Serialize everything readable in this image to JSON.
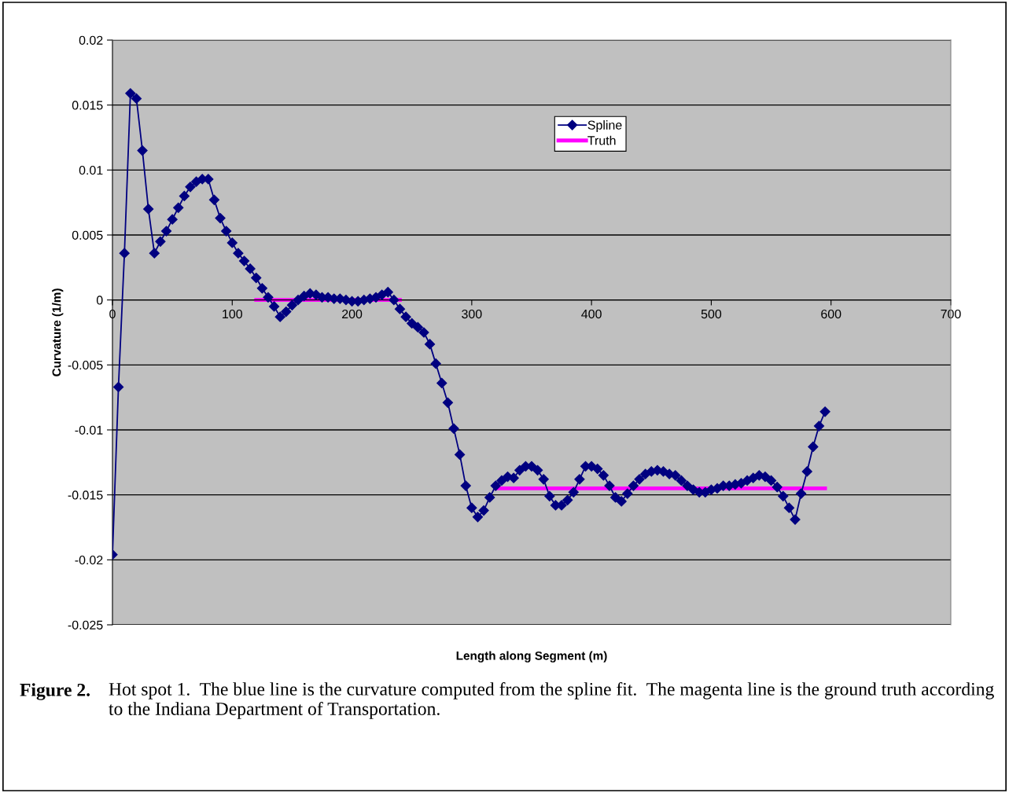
{
  "chart_data": {
    "type": "line",
    "xlabel": "Length along Segment (m)",
    "ylabel": "Curvature (1/m)",
    "xlim": [
      0,
      700
    ],
    "xticks": [
      0,
      100,
      200,
      300,
      400,
      500,
      600,
      700
    ],
    "ylim": [
      -0.025,
      0.02
    ],
    "yticks": [
      -0.025,
      -0.02,
      -0.015,
      -0.01,
      -0.005,
      0,
      0.005,
      0.01,
      0.015,
      0.02
    ],
    "grid": "y",
    "legend": "top right",
    "series": [
      {
        "name": "Spline",
        "color": "#000080",
        "marker": "diamond",
        "line_style": "solid",
        "x": [
          0,
          5,
          10,
          15,
          20,
          25,
          30,
          35,
          40,
          45,
          50,
          55,
          60,
          65,
          70,
          75,
          80,
          85,
          90,
          95,
          100,
          105,
          110,
          115,
          120,
          125,
          130,
          135,
          140,
          145,
          150,
          155,
          160,
          165,
          170,
          175,
          180,
          185,
          190,
          195,
          200,
          205,
          210,
          215,
          220,
          225,
          230,
          235,
          240,
          245,
          250,
          255,
          260,
          265,
          270,
          275,
          280,
          285,
          290,
          295,
          300,
          305,
          310,
          315,
          320,
          325,
          330,
          335,
          340,
          345,
          350,
          355,
          360,
          365,
          370,
          375,
          380,
          385,
          390,
          395,
          400,
          405,
          410,
          415,
          420,
          425,
          430,
          435,
          440,
          445,
          450,
          455,
          460,
          465,
          470,
          475,
          480,
          485,
          490,
          495,
          500,
          505,
          510,
          515,
          520,
          525,
          530,
          535,
          540,
          545,
          550,
          555,
          560,
          565,
          570,
          575,
          580,
          585,
          590,
          595
        ],
        "values": [
          -0.0196,
          -0.0067,
          0.0036,
          0.0159,
          0.0155,
          0.0115,
          0.007,
          0.0036,
          0.0045,
          0.0053,
          0.0062,
          0.0071,
          0.008,
          0.0087,
          0.0091,
          0.0093,
          0.0093,
          0.0077,
          0.0063,
          0.0053,
          0.0044,
          0.0036,
          0.003,
          0.0024,
          0.0017,
          0.0009,
          0.0002,
          -0.0005,
          -0.0013,
          -0.0009,
          -0.0004,
          0.0,
          0.0003,
          0.0005,
          0.0004,
          0.0002,
          0.0002,
          0.0001,
          0.0001,
          0.0,
          -0.0001,
          -0.0001,
          0.0,
          0.0001,
          0.0002,
          0.0004,
          0.0006,
          0.0,
          -0.0007,
          -0.0013,
          -0.0018,
          -0.0021,
          -0.0025,
          -0.0034,
          -0.0049,
          -0.0064,
          -0.0079,
          -0.0099,
          -0.0119,
          -0.0143,
          -0.016,
          -0.0167,
          -0.0162,
          -0.0152,
          -0.0143,
          -0.0139,
          -0.0136,
          -0.0137,
          -0.0131,
          -0.0128,
          -0.0128,
          -0.0131,
          -0.0138,
          -0.0151,
          -0.0158,
          -0.0158,
          -0.0154,
          -0.0148,
          -0.0138,
          -0.0128,
          -0.0128,
          -0.013,
          -0.0135,
          -0.0143,
          -0.0152,
          -0.0155,
          -0.0149,
          -0.0143,
          -0.0138,
          -0.0134,
          -0.0132,
          -0.0131,
          -0.0132,
          -0.0134,
          -0.0135,
          -0.0139,
          -0.0143,
          -0.0146,
          -0.0148,
          -0.0148,
          -0.0146,
          -0.0145,
          -0.0143,
          -0.0143,
          -0.0142,
          -0.0141,
          -0.0139,
          -0.0137,
          -0.0135,
          -0.0136,
          -0.0139,
          -0.0144,
          -0.0151,
          -0.016,
          -0.0169,
          -0.0149,
          -0.0132,
          -0.0113,
          -0.0097,
          -0.0086
        ]
      },
      {
        "name": "Truth",
        "color": "#ff00ff",
        "marker": "none",
        "line_style": "solid",
        "x": [
          120,
          240,
          280,
          320,
          595
        ],
        "values": [
          0,
          0,
          null,
          -0.0145,
          -0.0145
        ]
      }
    ],
    "annotations": [
      "Figure 2.",
      "Hot spot 1.  The blue line is the curvature computed from the spline fit.  The magenta line is the ground truth according to the Indiana Department of Transportation."
    ]
  }
}
